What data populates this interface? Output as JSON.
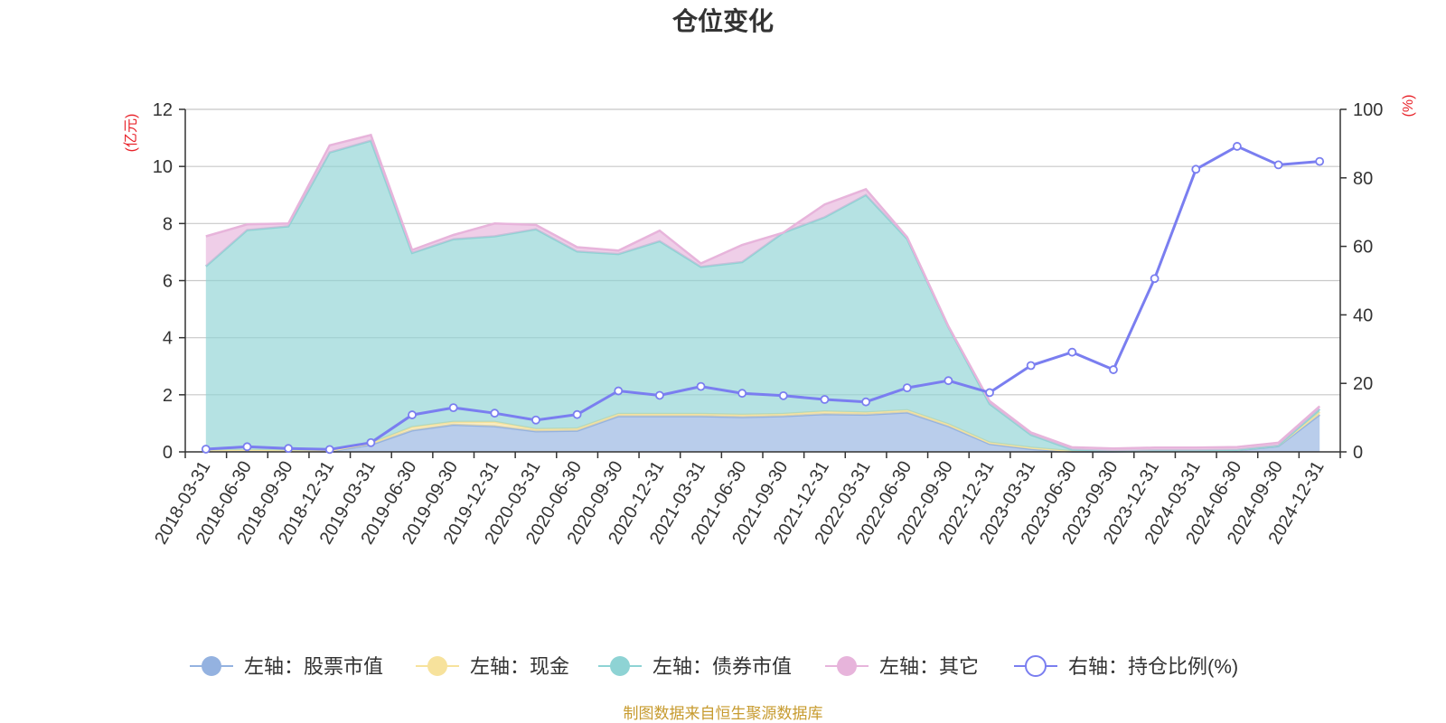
{
  "colors": {
    "stock": "#94B2E0",
    "cash": "#F7E29C",
    "bond": "#8ED3D4",
    "other": "#E7B4DB",
    "ratio": "#7A7EF0",
    "unit": "#E8242B",
    "source": "#C79B2F",
    "grid": "#C8C8C8",
    "axis": "#333333"
  },
  "chart_data": {
    "type": "area",
    "title": "仓位变化",
    "left_unit": "(亿元)",
    "right_unit": "(%)",
    "left_ylim": [
      0,
      12
    ],
    "left_ticks": [
      "0",
      "2",
      "4",
      "6",
      "8",
      "10",
      "12"
    ],
    "right_ylim": [
      0,
      100
    ],
    "right_ticks": [
      "0",
      "20",
      "40",
      "60",
      "80",
      "100"
    ],
    "categories": [
      "2018-03-31",
      "2018-06-30",
      "2018-09-30",
      "2018-12-31",
      "2019-03-31",
      "2019-06-30",
      "2019-09-30",
      "2019-12-31",
      "2020-03-31",
      "2020-06-30",
      "2020-09-30",
      "2020-12-31",
      "2021-03-31",
      "2021-06-30",
      "2021-09-30",
      "2021-12-31",
      "2022-03-31",
      "2022-06-30",
      "2022-09-30",
      "2022-12-31",
      "2023-03-31",
      "2023-06-30",
      "2023-09-30",
      "2023-12-31",
      "2024-03-31",
      "2024-06-30",
      "2024-09-30",
      "2024-12-31"
    ],
    "series": [
      {
        "name": "左轴：股票市值",
        "axis": "left",
        "values": [
          0.03,
          0.05,
          0.03,
          0.02,
          0.25,
          0.75,
          0.95,
          0.9,
          0.72,
          0.74,
          1.25,
          1.25,
          1.25,
          1.22,
          1.25,
          1.32,
          1.3,
          1.38,
          0.9,
          0.28,
          0.1,
          0.01,
          0.01,
          0.03,
          0.03,
          0.05,
          0.2,
          1.3
        ]
      },
      {
        "name": "左轴：现金",
        "axis": "left",
        "values": [
          0.02,
          0.02,
          0.02,
          0.02,
          0.05,
          0.12,
          0.1,
          0.15,
          0.08,
          0.08,
          0.08,
          0.08,
          0.08,
          0.08,
          0.08,
          0.1,
          0.08,
          0.08,
          0.07,
          0.05,
          0.05,
          0.02,
          0.02,
          0.02,
          0.02,
          0.02,
          0.02,
          0.1
        ]
      },
      {
        "name": "左轴：债券市值",
        "axis": "left",
        "values": [
          6.45,
          7.7,
          7.85,
          10.45,
          10.6,
          6.1,
          6.4,
          6.5,
          7.0,
          6.2,
          5.6,
          6.05,
          5.15,
          5.35,
          6.35,
          6.8,
          7.62,
          6.0,
          3.4,
          1.35,
          0.45,
          0.05,
          0.0,
          0.0,
          0.0,
          0.0,
          0.0,
          0.1
        ]
      },
      {
        "name": "左轴：其它",
        "axis": "left",
        "values": [
          1.05,
          0.2,
          0.1,
          0.25,
          0.2,
          0.1,
          0.15,
          0.45,
          0.15,
          0.15,
          0.12,
          0.37,
          0.12,
          0.6,
          0.0,
          0.45,
          0.2,
          0.06,
          0.03,
          0.1,
          0.08,
          0.08,
          0.09,
          0.1,
          0.1,
          0.1,
          0.1,
          0.1
        ]
      },
      {
        "name": "右轴：持仓比例(%)",
        "axis": "right",
        "values": [
          0.8,
          1.5,
          1.0,
          0.7,
          2.7,
          10.8,
          12.9,
          11.3,
          9.3,
          10.9,
          17.8,
          16.5,
          19.1,
          17.1,
          16.4,
          15.3,
          14.6,
          18.7,
          20.8,
          17.3,
          25.2,
          29.1,
          24.0,
          50.6,
          82.5,
          89.2,
          83.8,
          84.8
        ]
      }
    ],
    "source_text": "制图数据来自恒生聚源数据库"
  }
}
